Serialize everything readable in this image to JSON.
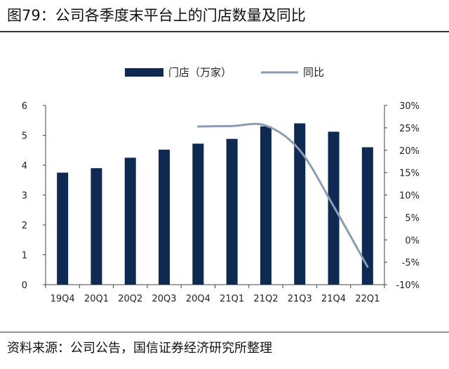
{
  "header": {
    "title": "图79：公司各季度末平台上的门店数量及同比"
  },
  "footer": {
    "source": "资料来源：公司公告，国信证券经济研究所整理"
  },
  "chart_data": {
    "type": "bar+line",
    "categories": [
      "19Q4",
      "20Q1",
      "20Q2",
      "20Q3",
      "20Q4",
      "21Q1",
      "21Q2",
      "21Q3",
      "21Q4",
      "22Q1"
    ],
    "series": [
      {
        "name": "门店（万家）",
        "type": "bar",
        "axis": "left",
        "values": [
          3.75,
          3.9,
          4.25,
          4.52,
          4.72,
          4.88,
          5.3,
          5.4,
          5.12,
          4.6
        ],
        "color": "#0f2a52"
      },
      {
        "name": "同比",
        "type": "line",
        "axis": "right",
        "values": [
          null,
          null,
          null,
          null,
          25.3,
          25.4,
          25.5,
          20.0,
          7.5,
          -6.0
        ],
        "color": "#8b9db5"
      }
    ],
    "left_axis": {
      "ylim": [
        0,
        6
      ],
      "ticks": [
        "0",
        "1",
        "2",
        "3",
        "4",
        "5",
        "6"
      ]
    },
    "right_axis": {
      "ylim": [
        -10,
        30
      ],
      "ticks": [
        "-10%",
        "-5%",
        "0%",
        "5%",
        "10%",
        "15%",
        "20%",
        "25%",
        "30%"
      ]
    },
    "legend": {
      "position": "top"
    }
  }
}
